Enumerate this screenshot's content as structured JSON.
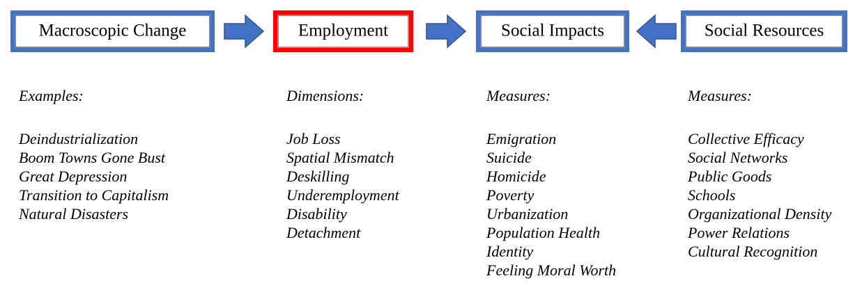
{
  "boxes": [
    {
      "label": "Macroscopic Change"
    },
    {
      "label": "Employment"
    },
    {
      "label": "Social Impacts"
    },
    {
      "label": "Social Resources"
    }
  ],
  "columns": [
    {
      "heading": "Examples:",
      "items": [
        "Deindustrialization",
        "Boom Towns Gone Bust",
        "Great Depression",
        "Transition to Capitalism",
        "Natural Disasters"
      ]
    },
    {
      "heading": "Dimensions:",
      "items": [
        "Job Loss",
        "Spatial Mismatch",
        "Deskilling",
        "Underemployment",
        "Disability",
        "Detachment"
      ]
    },
    {
      "heading": "Measures:",
      "items": [
        "Emigration",
        "Suicide",
        "Homicide",
        "Poverty",
        "Urbanization",
        "Population Health",
        "Identity",
        "Feeling Moral Worth"
      ]
    },
    {
      "heading": "Measures:",
      "items": [
        "Collective Efficacy",
        "Social Networks",
        "Public Goods",
        "Schools",
        "Organizational Density",
        "Power Relations",
        "Cultural Recognition"
      ]
    }
  ]
}
